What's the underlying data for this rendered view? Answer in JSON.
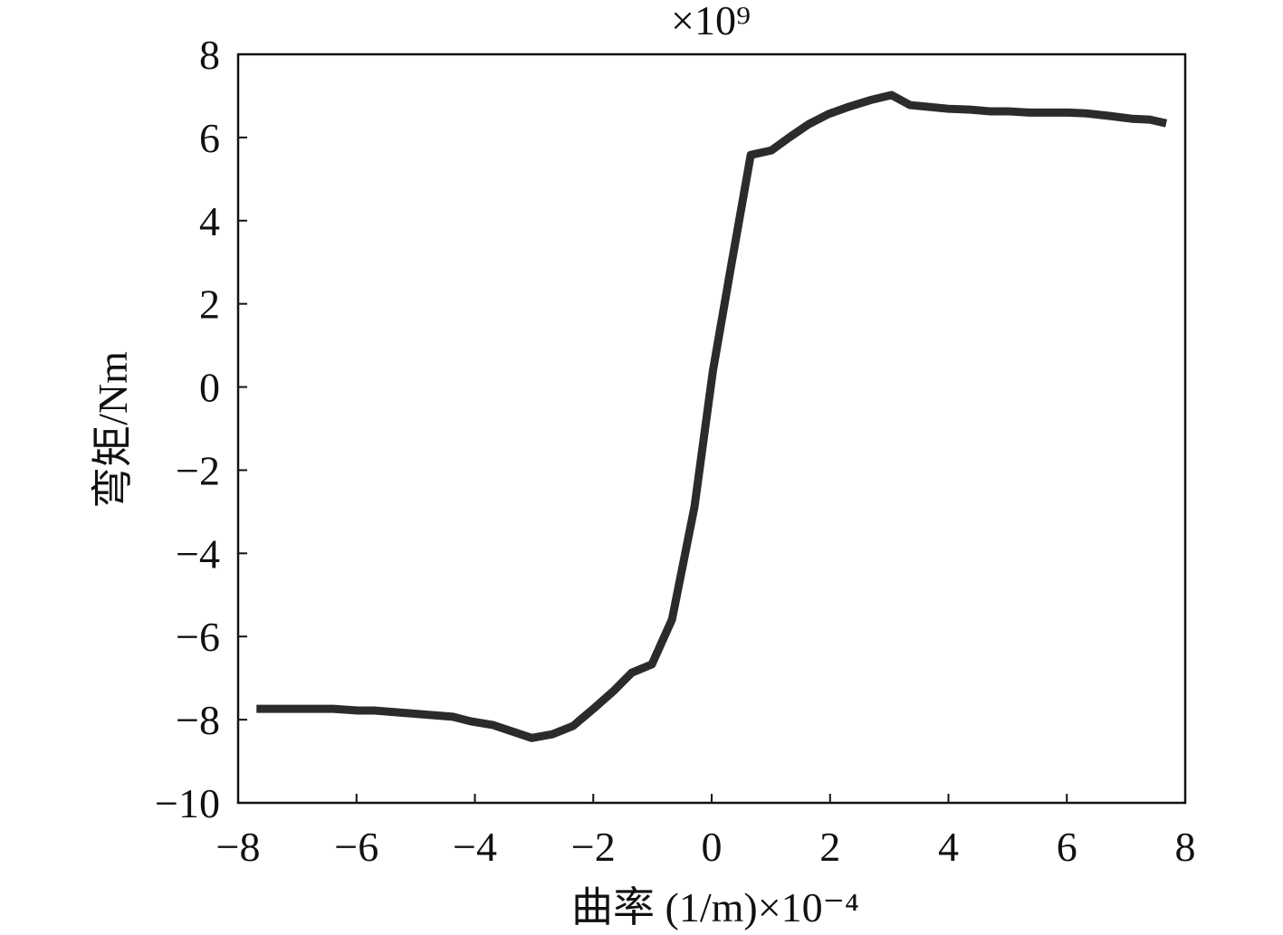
{
  "chart_data": {
    "type": "line",
    "multiplier_label": "×10⁹",
    "x_label": "曲率 (1/m)×10⁻⁴",
    "y_label": "弯矩/Nm",
    "color": "#2b2b2b",
    "x": [
      -7.69,
      -6.39,
      -5.98,
      -5.7,
      -4.37,
      -4.07,
      -3.69,
      -3.04,
      -2.69,
      -2.34,
      -2.0,
      -1.65,
      -1.35,
      -1.01,
      -0.67,
      -0.29,
      0.02,
      0.32,
      0.66,
      1.01,
      1.31,
      1.64,
      1.97,
      2.32,
      2.71,
      3.04,
      3.35,
      4.0,
      4.37,
      4.69,
      5.0,
      5.37,
      6.02,
      6.33,
      6.71,
      7.1,
      7.4,
      7.68
    ],
    "values": [
      -7.74,
      -7.74,
      -7.78,
      -7.78,
      -7.93,
      -8.04,
      -8.13,
      -8.44,
      -8.35,
      -8.15,
      -7.74,
      -7.3,
      -6.87,
      -6.67,
      -5.59,
      -2.88,
      0.38,
      2.84,
      5.58,
      5.69,
      6.0,
      6.32,
      6.56,
      6.74,
      6.91,
      7.02,
      6.78,
      6.69,
      6.67,
      6.63,
      6.63,
      6.6,
      6.6,
      6.58,
      6.52,
      6.45,
      6.43,
      6.34
    ],
    "xlim": [
      -8,
      8
    ],
    "xticks": [
      {
        "value": -8,
        "label": "−8"
      },
      {
        "value": -6,
        "label": "−6"
      },
      {
        "value": -4,
        "label": "−4"
      },
      {
        "value": -2,
        "label": "−2"
      },
      0,
      2,
      4,
      6,
      8
    ],
    "ylim": [
      -10,
      8
    ],
    "yticks": [
      {
        "value": -10,
        "label": "−10"
      },
      {
        "value": -8,
        "label": "−8"
      },
      {
        "value": -6,
        "label": "−6"
      },
      {
        "value": -4,
        "label": "−4"
      },
      {
        "value": -2,
        "label": "−2"
      },
      0,
      2,
      4,
      6,
      8
    ]
  }
}
